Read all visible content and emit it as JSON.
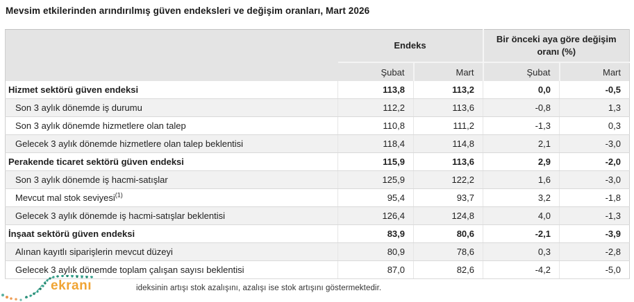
{
  "title": "Mevsim etkilerinden arındırılmış güven endeksleri ve değişim oranları, Mart 2026",
  "table": {
    "col_groups": [
      {
        "label": "Endeks"
      },
      {
        "label": "Bir önceki aya göre değişim oranı (%)"
      }
    ],
    "sub_headers": [
      "Şubat",
      "Mart",
      "Şubat",
      "Mart"
    ],
    "rows": [
      {
        "label": "Hizmet sektörü güven endeksi",
        "style": "section",
        "values": [
          "113,8",
          "113,2",
          "0,0",
          "-0,5"
        ]
      },
      {
        "label": "Son 3 aylık dönemde iş durumu",
        "style": "sub",
        "values": [
          "112,2",
          "113,6",
          "-0,8",
          "1,3"
        ]
      },
      {
        "label": "Son 3 aylık dönemde hizmetlere olan talep",
        "style": "sub",
        "values": [
          "110,8",
          "111,2",
          "-1,3",
          "0,3"
        ]
      },
      {
        "label": "Gelecek 3 aylık dönemde hizmetlere olan talep beklentisi",
        "style": "sub",
        "values": [
          "118,4",
          "114,8",
          "2,1",
          "-3,0"
        ]
      },
      {
        "label": "Perakende ticaret sektörü güven endeksi",
        "style": "section",
        "values": [
          "115,9",
          "113,6",
          "2,9",
          "-2,0"
        ]
      },
      {
        "label": "Son 3 aylık dönemde iş hacmi-satışlar",
        "style": "sub",
        "values": [
          "125,9",
          "122,2",
          "1,6",
          "-3,0"
        ]
      },
      {
        "label": "Mevcut mal stok seviyesi",
        "sup": "(1)",
        "style": "sub",
        "values": [
          "95,4",
          "93,7",
          "3,2",
          "-1,8"
        ]
      },
      {
        "label": "Gelecek 3 aylık dönemde iş hacmi-satışlar beklentisi",
        "style": "sub",
        "values": [
          "126,4",
          "124,8",
          "4,0",
          "-1,3"
        ]
      },
      {
        "label": "İnşaat sektörü güven endeksi",
        "style": "section",
        "values": [
          "83,9",
          "80,6",
          "-2,1",
          "-3,9"
        ]
      },
      {
        "label": "Alınan kayıtlı siparişlerin mevcut düzeyi",
        "style": "sub",
        "values": [
          "80,9",
          "78,6",
          "0,3",
          "-2,8"
        ]
      },
      {
        "label": "Gelecek 3 aylık dönemde toplam çalışan sayısı beklentisi",
        "style": "sub",
        "values": [
          "87,0",
          "82,6",
          "-4,2",
          "-5,0"
        ]
      }
    ]
  },
  "footnote": "ideksinin artışı stok azalışını, azalışı ise stok artışını göstermektedir.",
  "logo": {
    "text": "ekranı",
    "orange": "#f0a433",
    "teal": "#2f9e8a",
    "dark_green": "#1d7d63"
  },
  "colors": {
    "header_bg": "#e4e4e4",
    "alt_row_bg": "#f1f1f1",
    "row_border": "#d9d9d9",
    "table_border": "#cfcfcf",
    "text": "#1f1f1f"
  }
}
